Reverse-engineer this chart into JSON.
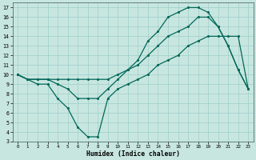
{
  "xlabel": "Humidex (Indice chaleur)",
  "bg_color": "#c8e6e0",
  "line_color": "#006858",
  "grid_color": "#9ecfca",
  "xlim": [
    -0.5,
    23.5
  ],
  "ylim": [
    3,
    17.5
  ],
  "xticks": [
    0,
    1,
    2,
    3,
    4,
    5,
    6,
    7,
    8,
    9,
    10,
    11,
    12,
    13,
    14,
    15,
    16,
    17,
    18,
    19,
    20,
    21,
    22,
    23
  ],
  "yticks": [
    3,
    4,
    5,
    6,
    7,
    8,
    9,
    10,
    11,
    12,
    13,
    14,
    15,
    16,
    17
  ],
  "line1_x": [
    0,
    1,
    2,
    3,
    4,
    5,
    6,
    7,
    8,
    9,
    10,
    11,
    12,
    13,
    14,
    15,
    16,
    17,
    18,
    19,
    20,
    21,
    22,
    23
  ],
  "line1_y": [
    10,
    9.5,
    9.5,
    9.5,
    9.5,
    9.5,
    9.5,
    9.5,
    9.5,
    9.5,
    10,
    10.5,
    11,
    12,
    13,
    14,
    14.5,
    15,
    16,
    16,
    15,
    13,
    10.5,
    8.5
  ],
  "line2_x": [
    0,
    1,
    2,
    3,
    4,
    5,
    6,
    7,
    8,
    9,
    10,
    11,
    12,
    13,
    14,
    15,
    16,
    17,
    18,
    19,
    20,
    21,
    22,
    23
  ],
  "line2_y": [
    10,
    9.5,
    9.0,
    9.0,
    7.5,
    6.5,
    4.5,
    3.5,
    3.5,
    7.5,
    8.5,
    9.0,
    9.5,
    10,
    11,
    11.5,
    12,
    13,
    13.5,
    14,
    14,
    14,
    14,
    8.5
  ],
  "line3_x": [
    0,
    1,
    2,
    3,
    4,
    5,
    6,
    7,
    8,
    9,
    10,
    11,
    12,
    13,
    14,
    15,
    16,
    17,
    18,
    19,
    20,
    21,
    22,
    23
  ],
  "line3_y": [
    10,
    9.5,
    9.5,
    9.5,
    9.0,
    8.5,
    7.5,
    7.5,
    7.5,
    8.5,
    9.5,
    10.5,
    11.5,
    13.5,
    14.5,
    16,
    16.5,
    17,
    17,
    16.5,
    15,
    13,
    10.5,
    8.5
  ]
}
